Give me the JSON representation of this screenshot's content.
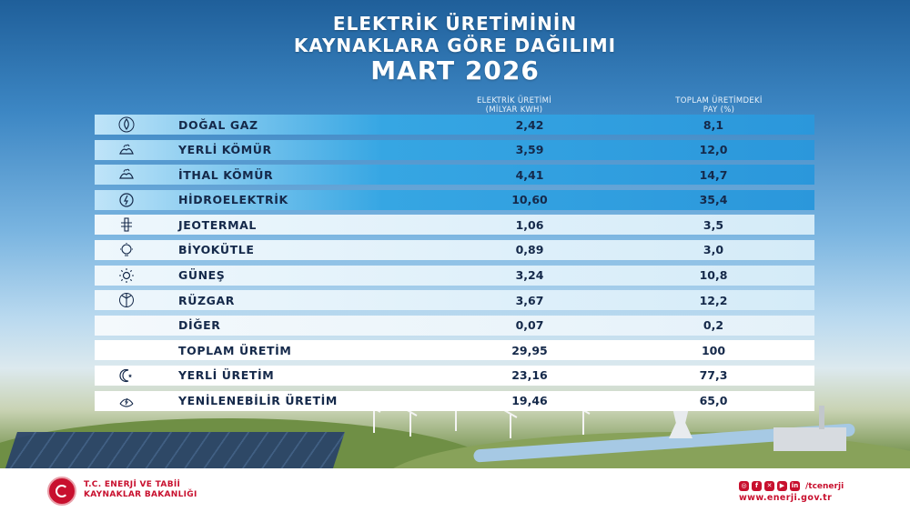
{
  "header": {
    "title_line1": "ELEKTRİK ÜRETİMİNİN",
    "title_line2": "KAYNAKLARA GÖRE DAĞILIMI",
    "period": "MART 2026"
  },
  "columns": {
    "production_line1": "ELEKTRİK ÜRETİMİ",
    "production_line2": "(MİLYAR KWH)",
    "share_line1": "TOPLAM ÜRETİMDEKİ",
    "share_line2": "PAY (%)"
  },
  "rows": [
    {
      "icon": "gas-flame-icon",
      "label": "DOĞAL GAZ",
      "production": "2,42",
      "share": "8,1"
    },
    {
      "icon": "coal-icon",
      "label": "YERLİ KÖMÜR",
      "production": "3,59",
      "share": "12,0"
    },
    {
      "icon": "coal-icon",
      "label": "İTHAL KÖMÜR",
      "production": "4,41",
      "share": "14,7"
    },
    {
      "icon": "hydro-icon",
      "label": "HİDROELEKTRİK",
      "production": "10,60",
      "share": "35,4"
    },
    {
      "icon": "geothermal-icon",
      "label": "JEOTERMAL",
      "production": "1,06",
      "share": "3,5"
    },
    {
      "icon": "biomass-icon",
      "label": "BİYOKÜTLE",
      "production": "0,89",
      "share": "3,0"
    },
    {
      "icon": "sun-icon",
      "label": "GÜNEŞ",
      "production": "3,24",
      "share": "10,8"
    },
    {
      "icon": "wind-icon",
      "label": "RÜZGAR",
      "production": "3,67",
      "share": "12,2"
    },
    {
      "icon": "",
      "label": "DİĞER",
      "production": "0,07",
      "share": "0,2"
    },
    {
      "icon": "",
      "label": "TOPLAM ÜRETİM",
      "production": "29,95",
      "share": "100"
    },
    {
      "icon": "crescent-star-icon",
      "label": "YERLİ ÜRETİM",
      "production": "23,16",
      "share": "77,3"
    },
    {
      "icon": "renewable-icon",
      "label": "YENİLENEBİLİR ÜRETİM",
      "production": "19,46",
      "share": "65,0"
    }
  ],
  "footer": {
    "ministry_line1": "T.C. ENERJİ VE TABİİ",
    "ministry_line2": "KAYNAKLAR BAKANLIĞI",
    "social_handle": "/tcenerji",
    "website": "www.enerji.gov.tr"
  },
  "colors": {
    "accent_blue": "#2b97db",
    "text_dark": "#15294a",
    "brand_red": "#c8102e"
  }
}
